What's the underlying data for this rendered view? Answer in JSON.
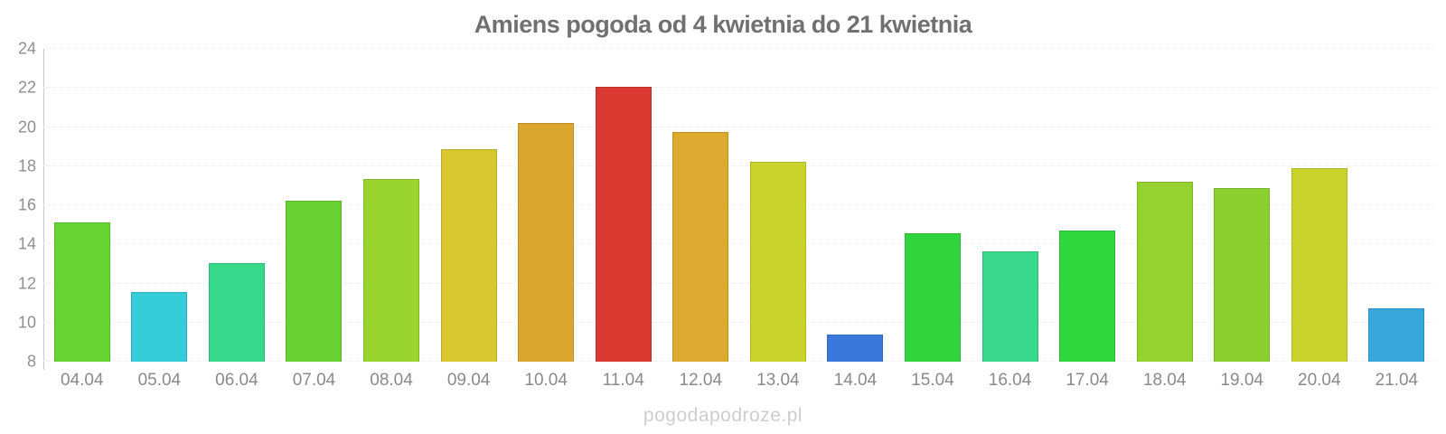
{
  "title": "Amiens pogoda od 4 kwietnia do 21 kwietnia",
  "watermark": "pogodapodroze.pl",
  "colors": {
    "background": "#ffffff",
    "title_text": "#707070",
    "y_tick_label": "#8f8f8f",
    "x_tick_label": "#8a8a8a",
    "gridline": "#ececec",
    "axis_line": "#c9c9c9",
    "watermark_text": "#cdcdcd"
  },
  "chart_data": {
    "type": "bar",
    "title": "Amiens pogoda od 4 kwietnia do 21 kwietnia",
    "xlabel": "",
    "ylabel": "",
    "ylim": [
      8,
      24
    ],
    "yticks": [
      8,
      10,
      12,
      14,
      16,
      18,
      20,
      22,
      24
    ],
    "grid": true,
    "legend": false,
    "categories": [
      "04.04",
      "05.04",
      "06.04",
      "07.04",
      "08.04",
      "09.04",
      "10.04",
      "11.04",
      "12.04",
      "13.04",
      "14.04",
      "15.04",
      "16.04",
      "17.04",
      "18.04",
      "19.04",
      "20.04",
      "21.04"
    ],
    "values": [
      15.1,
      11.55,
      13.05,
      16.25,
      17.35,
      18.85,
      20.2,
      22.05,
      19.75,
      18.2,
      9.4,
      14.55,
      13.65,
      14.7,
      17.2,
      16.9,
      17.9,
      10.75
    ],
    "bar_colors": [
      "#67d434",
      "#35ccda",
      "#35d989",
      "#68d233",
      "#9ad42f",
      "#d8c72e",
      "#dba62e",
      "#da3931",
      "#dbaa2e",
      "#c9d32b",
      "#3b78db",
      "#30d53d",
      "#38d98a",
      "#30d63e",
      "#95d22f",
      "#8cd030",
      "#c9d32b",
      "#38a7db"
    ]
  }
}
